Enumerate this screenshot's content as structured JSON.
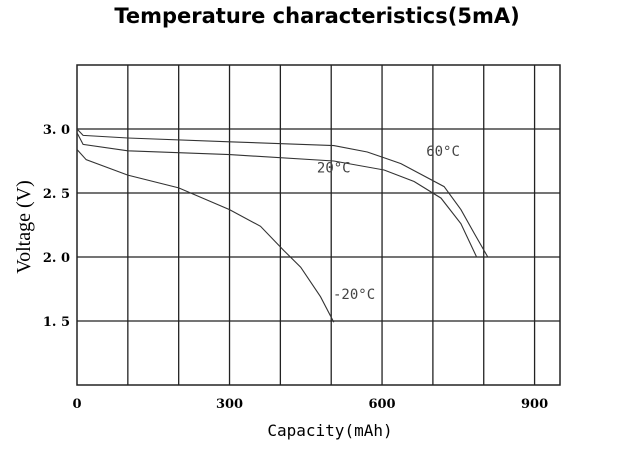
{
  "chart_data": {
    "type": "line",
    "title": "Temperature characteristics(5mA)",
    "xlabel": "Capacity(mAh)",
    "ylabel": "Voltage (V)",
    "xlim": [
      0,
      950
    ],
    "ylim": [
      1.0,
      3.5
    ],
    "xticks": [
      0,
      300,
      600,
      900
    ],
    "xtick_labels": [
      "0",
      "300",
      "600",
      "900"
    ],
    "yticks": [
      3.0,
      2.5,
      2.0,
      1.5
    ],
    "ytick_labels": [
      "3. 0",
      "2. 5",
      "2. 0",
      "1. 5"
    ],
    "x_gridlines": [
      100,
      200,
      300,
      400,
      500,
      600,
      700,
      800,
      900
    ],
    "y_gridlines": [
      1.5,
      2.0,
      2.5,
      3.0
    ],
    "grid": true,
    "series": [
      {
        "name": "60°C",
        "label_at": [
          720,
          2.79
        ],
        "x": [
          0,
          12,
          100,
          300,
          505,
          571,
          637,
          722,
          755,
          782,
          808
        ],
        "y": [
          3.0,
          2.95,
          2.93,
          2.9,
          2.87,
          2.82,
          2.73,
          2.55,
          2.37,
          2.18,
          2.0
        ]
      },
      {
        "name": "20°C",
        "label_at": [
          505,
          2.66
        ],
        "x": [
          0,
          12,
          100,
          300,
          505,
          604,
          663,
          716,
          755,
          786
        ],
        "y": [
          2.97,
          2.88,
          2.83,
          2.8,
          2.75,
          2.68,
          2.59,
          2.46,
          2.26,
          2.0
        ]
      },
      {
        "name": "-20°C",
        "label_at": [
          545,
          1.67
        ],
        "x": [
          0,
          18,
          100,
          200,
          300,
          361,
          407,
          440,
          479,
          505
        ],
        "y": [
          2.84,
          2.76,
          2.64,
          2.54,
          2.37,
          2.24,
          2.05,
          1.92,
          1.69,
          1.49
        ]
      }
    ]
  }
}
